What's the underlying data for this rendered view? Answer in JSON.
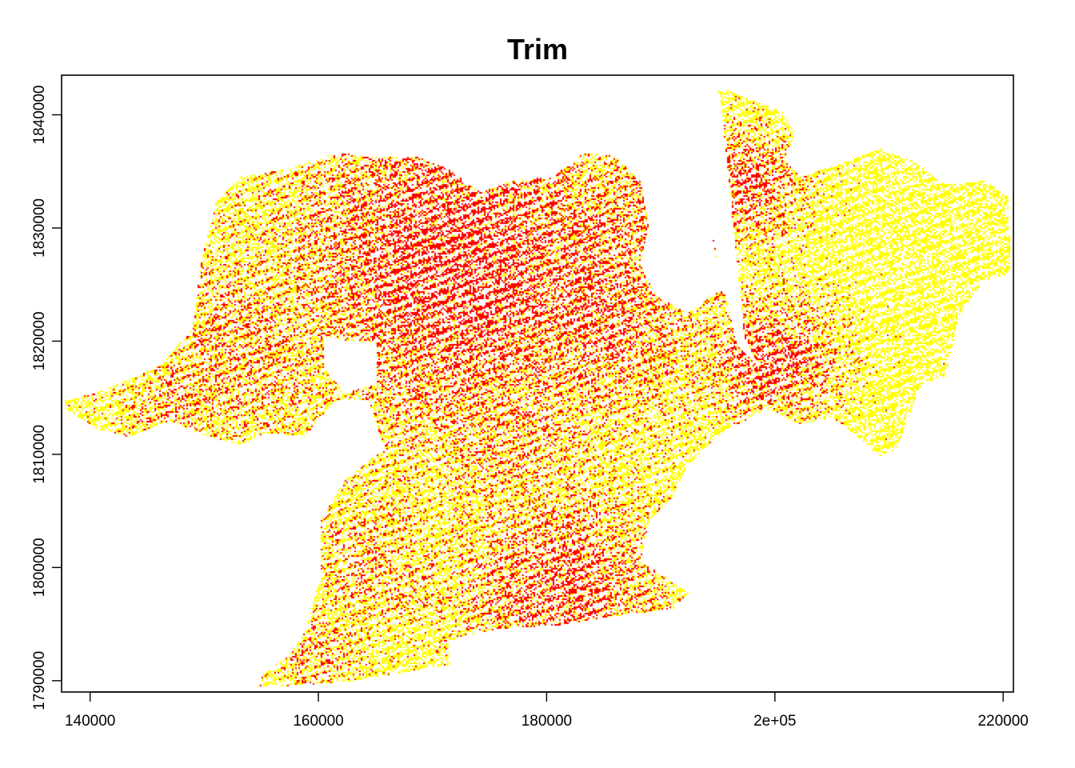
{
  "chart_data": {
    "type": "raster",
    "title": "Trim",
    "xlabel": "",
    "ylabel": "",
    "xlim": [
      137500,
      220900
    ],
    "ylim": [
      1789000,
      1843500
    ],
    "x_ticks": [
      {
        "value": 140000,
        "label": "140000"
      },
      {
        "value": 160000,
        "label": "160000"
      },
      {
        "value": 180000,
        "label": "180000"
      },
      {
        "value": 200000,
        "label": "2e+05"
      },
      {
        "value": 220000,
        "label": "220000"
      }
    ],
    "y_ticks": [
      {
        "value": 1790000,
        "label": "1790000"
      },
      {
        "value": 1800000,
        "label": "1800000"
      },
      {
        "value": 1810000,
        "label": "1810000"
      },
      {
        "value": 1820000,
        "label": "1820000"
      },
      {
        "value": 1830000,
        "label": "1830000"
      },
      {
        "value": 1840000,
        "label": "1840000"
      }
    ],
    "classes": [
      {
        "value": 1,
        "color": "#ffff00"
      },
      {
        "value": 2,
        "color": "#ff0000"
      }
    ],
    "grid": false,
    "legend": "none"
  }
}
